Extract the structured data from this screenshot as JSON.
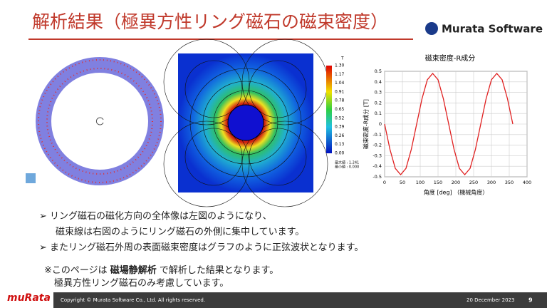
{
  "header": {
    "title": "解析結果（極異方性リング磁石の磁束密度）",
    "logo": "Murata Software"
  },
  "contour_legend": {
    "unit": "T",
    "labels": [
      "1.30",
      "1.17",
      "1.04",
      "0.91",
      "0.78",
      "0.65",
      "0.52",
      "0.39",
      "0.26",
      "0.13",
      "0.00"
    ],
    "max": "最大値 : 1.241",
    "min": "最小値 : 0.000"
  },
  "chart_data": {
    "type": "line",
    "title": "磁束密度-R成分",
    "x_label": "角度 [deg] （機械角度）",
    "y_label": "磁束密度-R成分 [T]",
    "x": [
      0,
      15,
      30,
      45,
      60,
      75,
      90,
      105,
      120,
      135,
      150,
      165,
      180,
      195,
      210,
      225,
      240,
      255,
      270,
      285,
      300,
      315,
      330,
      345,
      360
    ],
    "series": [
      {
        "color": "#e02020",
        "values": [
          0,
          -0.24,
          -0.42,
          -0.48,
          -0.42,
          -0.24,
          0,
          0.24,
          0.42,
          0.48,
          0.42,
          0.24,
          0,
          -0.24,
          -0.42,
          -0.48,
          -0.42,
          -0.24,
          0,
          0.24,
          0.42,
          0.48,
          0.42,
          0.24,
          0
        ]
      }
    ],
    "xlim": [
      0,
      400
    ],
    "xticks": [
      0,
      50,
      100,
      150,
      200,
      250,
      300,
      350,
      400
    ],
    "ylim": [
      -0.5,
      0.5
    ],
    "yticks": [
      0.5,
      0.4,
      0.3,
      0.2,
      0.1,
      0,
      -0.1,
      -0.2,
      -0.3,
      -0.4,
      -0.5
    ],
    "grid": true
  },
  "bullets": [
    "リング磁石の磁化方向の全体像は左図のようになり、",
    "磁束線は右図のようにリング磁石の外側に集中しています。",
    "またリング磁石外周の表面磁束密度はグラフのように正弦波状となります。"
  ],
  "note": {
    "prefix": "※このページは ",
    "bold": "磁場静解析",
    "suffix": " で解析した結果となります。",
    "line2": "極異方性リング磁石のみ考慮しています。"
  },
  "footer": {
    "brand": "muRata",
    "copyright": "Copyright © Murata Software Co., Ltd. All rights reserved.",
    "date": "20 December 2023",
    "page": "9"
  }
}
